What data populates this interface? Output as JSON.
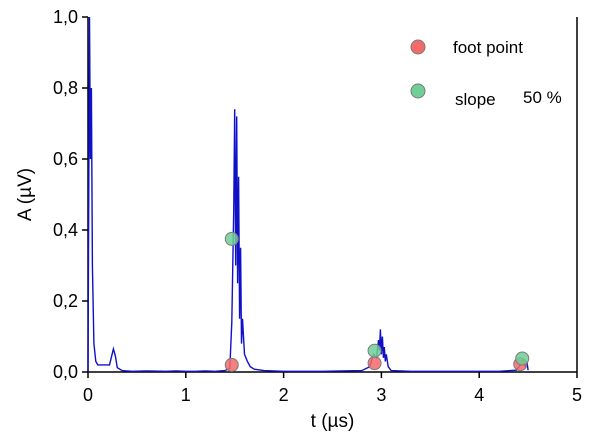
{
  "chart_data": {
    "type": "line",
    "xlabel": "t (µs)",
    "ylabel": "A (µV)",
    "xlim": [
      0,
      5
    ],
    "ylim": [
      0,
      1.0
    ],
    "x_ticks": [
      "0",
      "1",
      "2",
      "3",
      "4",
      "5"
    ],
    "y_ticks": [
      "0,0",
      "0,2",
      "0,4",
      "0,6",
      "0,8",
      "1,0"
    ],
    "grid": false,
    "legend_position": "top-right",
    "colors": {
      "signal": "#1010c8",
      "foot_point": "#f26a6a",
      "slope": "#6fcf97",
      "marker_edge": "#7a7a7a"
    },
    "signal": {
      "x": [
        0.0,
        0.015,
        0.025,
        0.035,
        0.045,
        0.06,
        0.08,
        0.1,
        0.15,
        0.22,
        0.26,
        0.28,
        0.3,
        0.35,
        0.45,
        0.6,
        0.8,
        0.9,
        1.0,
        1.1,
        1.2,
        1.3,
        1.4,
        1.45,
        1.47,
        1.49,
        1.5,
        1.51,
        1.52,
        1.53,
        1.54,
        1.55,
        1.56,
        1.57,
        1.58,
        1.6,
        1.63,
        1.66,
        1.7,
        1.8,
        2.0,
        2.2,
        2.4,
        2.6,
        2.8,
        2.88,
        2.92,
        2.95,
        2.97,
        2.98,
        2.99,
        3.0,
        3.01,
        3.02,
        3.03,
        3.04,
        3.05,
        3.07,
        3.1,
        3.3,
        3.6,
        3.9,
        4.2,
        4.38,
        4.42,
        4.45,
        4.47,
        4.49,
        4.5
      ],
      "y": [
        0.0,
        1.0,
        0.6,
        0.8,
        0.3,
        0.08,
        0.03,
        0.02,
        0.02,
        0.02,
        0.065,
        0.045,
        0.012,
        0.004,
        0.002,
        0.003,
        0.002,
        0.003,
        0.002,
        0.002,
        0.003,
        0.002,
        0.004,
        0.01,
        0.14,
        0.45,
        0.74,
        0.3,
        0.72,
        0.25,
        0.55,
        0.15,
        0.35,
        0.08,
        0.15,
        0.05,
        0.03,
        0.015,
        0.008,
        0.004,
        0.002,
        0.002,
        0.002,
        0.003,
        0.004,
        0.015,
        0.05,
        0.04,
        0.09,
        0.06,
        0.12,
        0.05,
        0.1,
        0.04,
        0.07,
        0.03,
        0.05,
        0.015,
        0.004,
        0.002,
        0.002,
        0.002,
        0.002,
        0.005,
        0.02,
        0.035,
        0.015,
        0.025,
        0.005
      ]
    },
    "series": [
      {
        "name": "foot point",
        "x": [
          1.47,
          2.93,
          4.42
        ],
        "y": [
          0.02,
          0.025,
          0.022
        ]
      },
      {
        "name": "slope",
        "x": [
          1.47,
          2.93,
          4.44
        ],
        "y": [
          0.375,
          0.06,
          0.038
        ]
      }
    ],
    "legend": {
      "annotation": "50 %"
    }
  }
}
